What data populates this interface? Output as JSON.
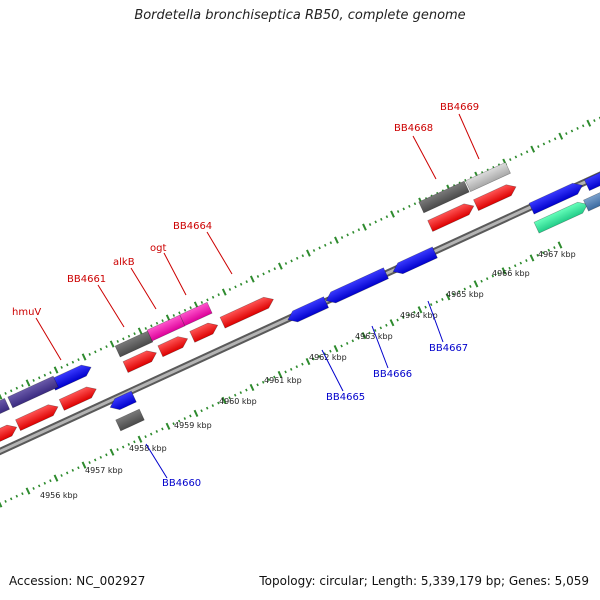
{
  "title": "Bordetella bronchiseptica RB50, complete genome",
  "accession": "Accession: NC_002927",
  "summary": "Topology: circular; Length: 5,339,179 bp; Genes: 5,059",
  "colors": {
    "forward_label": "#cc0000",
    "reverse_label": "#0000cc",
    "backbone": "#8c8c8c",
    "tick_outer": "#2e8b2e",
    "tick_inner": "#2e8b2e"
  },
  "scale_labels": [
    "4956 kbp",
    "4957 kbp",
    "4958 kbp",
    "4959 kbp",
    "4960 kbp",
    "4961 kbp",
    "4962 kbp",
    "4963 kbp",
    "4964 kbp",
    "4965 kbp",
    "4966 kbp",
    "4967 kbp"
  ],
  "forward_gene_labels": [
    "hmuV",
    "BB4661",
    "alkB",
    "ogt",
    "BB4664",
    "BB4668",
    "BB4669"
  ],
  "reverse_gene_labels": [
    "BB4660",
    "BB4665",
    "BB4666",
    "BB4667"
  ]
}
